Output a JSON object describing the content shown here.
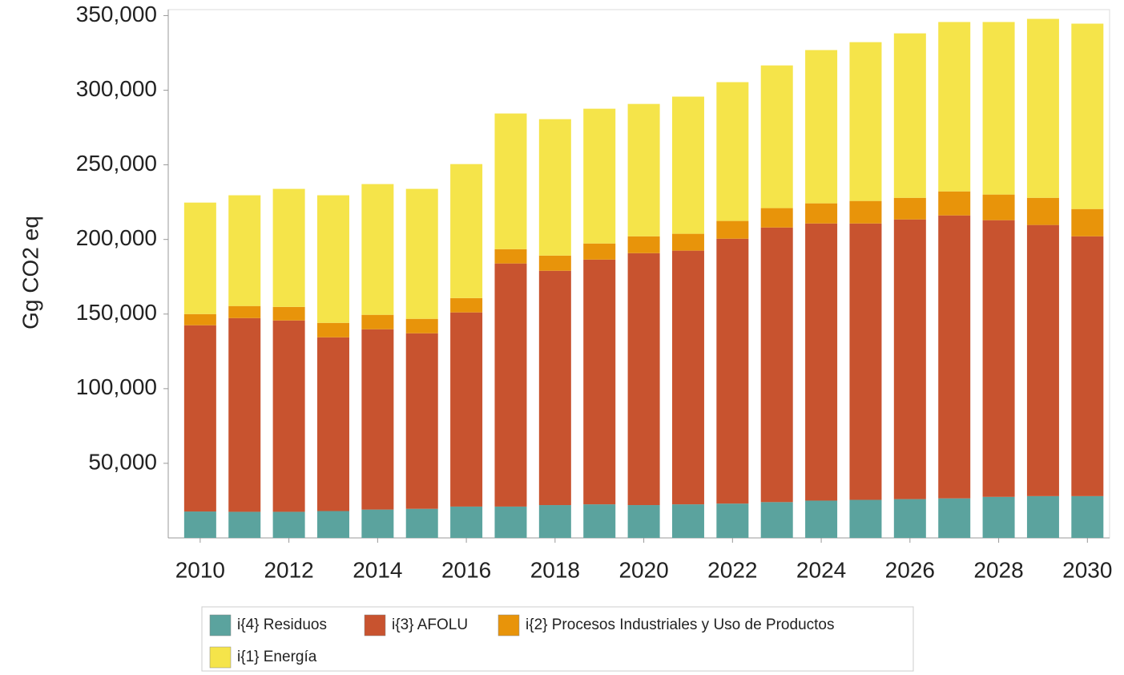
{
  "chart_data": {
    "type": "stacked_bar",
    "y_label": "Gg CO2 eq",
    "x": [
      2010,
      2011,
      2012,
      2013,
      2014,
      2015,
      2016,
      2017,
      2018,
      2019,
      2020,
      2021,
      2022,
      2023,
      2024,
      2025,
      2026,
      2027,
      2028,
      2029,
      2030
    ],
    "xlim": [
      2009.28,
      2030.5
    ],
    "xticks": [
      2010,
      2012,
      2014,
      2016,
      2018,
      2020,
      2022,
      2024,
      2026,
      2028,
      2030
    ],
    "ylim": [
      0,
      354000
    ],
    "yticks": [
      {
        "value": 50000,
        "label": "50,000"
      },
      {
        "value": 100000,
        "label": "100,000"
      },
      {
        "value": 150000,
        "label": "150,000"
      },
      {
        "value": 200000,
        "label": "200,000"
      },
      {
        "value": 250000,
        "label": "250,000"
      },
      {
        "value": 300000,
        "label": "300,000"
      },
      {
        "value": 350000,
        "label": "350,000"
      }
    ],
    "series": [
      {
        "name": "i{4} Residuos",
        "color": "#5ba39e",
        "values": [
          17700,
          17500,
          17500,
          18000,
          19000,
          19500,
          21000,
          21000,
          22000,
          22500,
          22000,
          22500,
          23000,
          24000,
          25000,
          25500,
          26000,
          26500,
          27500,
          28000,
          28000
        ]
      },
      {
        "name": "i{3} AFOLU",
        "color": "#c8532f",
        "values": [
          124800,
          129800,
          128200,
          116400,
          120800,
          117600,
          130100,
          162900,
          157000,
          164000,
          168800,
          170000,
          177500,
          184000,
          185700,
          185200,
          187400,
          189600,
          185400,
          181700,
          174100
        ]
      },
      {
        "name": "i{2} Procesos Industriales y Uso de Productos",
        "color": "#e8940a",
        "values": [
          7500,
          8100,
          9100,
          9700,
          9700,
          9700,
          9600,
          9600,
          10200,
          10800,
          11300,
          11300,
          11900,
          13000,
          13500,
          15100,
          14500,
          16100,
          17200,
          18200,
          18300
        ]
      },
      {
        "name": "i{1} Energía",
        "color": "#f5e44a",
        "values": [
          74700,
          74200,
          79100,
          85500,
          87600,
          87100,
          89800,
          90900,
          91400,
          90300,
          88700,
          91900,
          93000,
          95600,
          102700,
          106400,
          110200,
          113500,
          115600,
          119900,
          124200
        ]
      }
    ]
  }
}
